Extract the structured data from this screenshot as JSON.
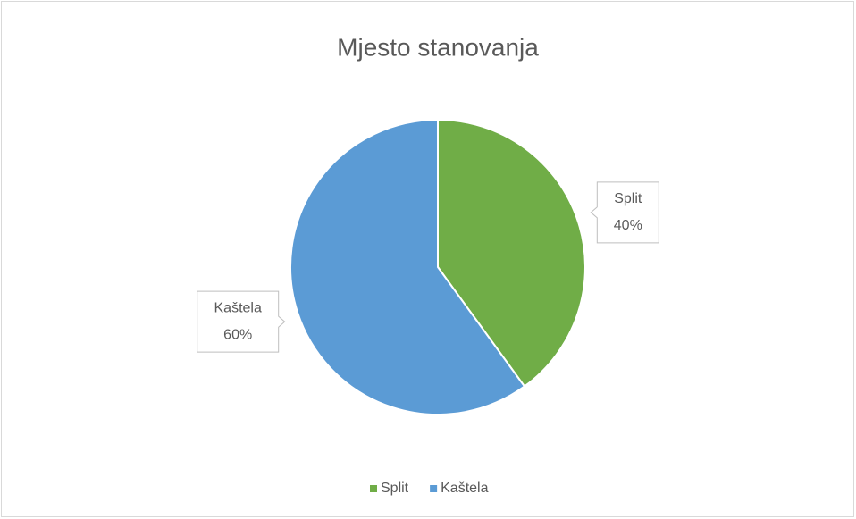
{
  "chart_data": {
    "type": "pie",
    "title": "Mjesto stanovanja",
    "categories": [
      "Split",
      "Kaštela"
    ],
    "values": [
      40,
      60
    ],
    "value_labels": [
      "40%",
      "60%"
    ],
    "colors": [
      "#70ad47",
      "#5b9bd5"
    ],
    "legend": "bottom"
  }
}
